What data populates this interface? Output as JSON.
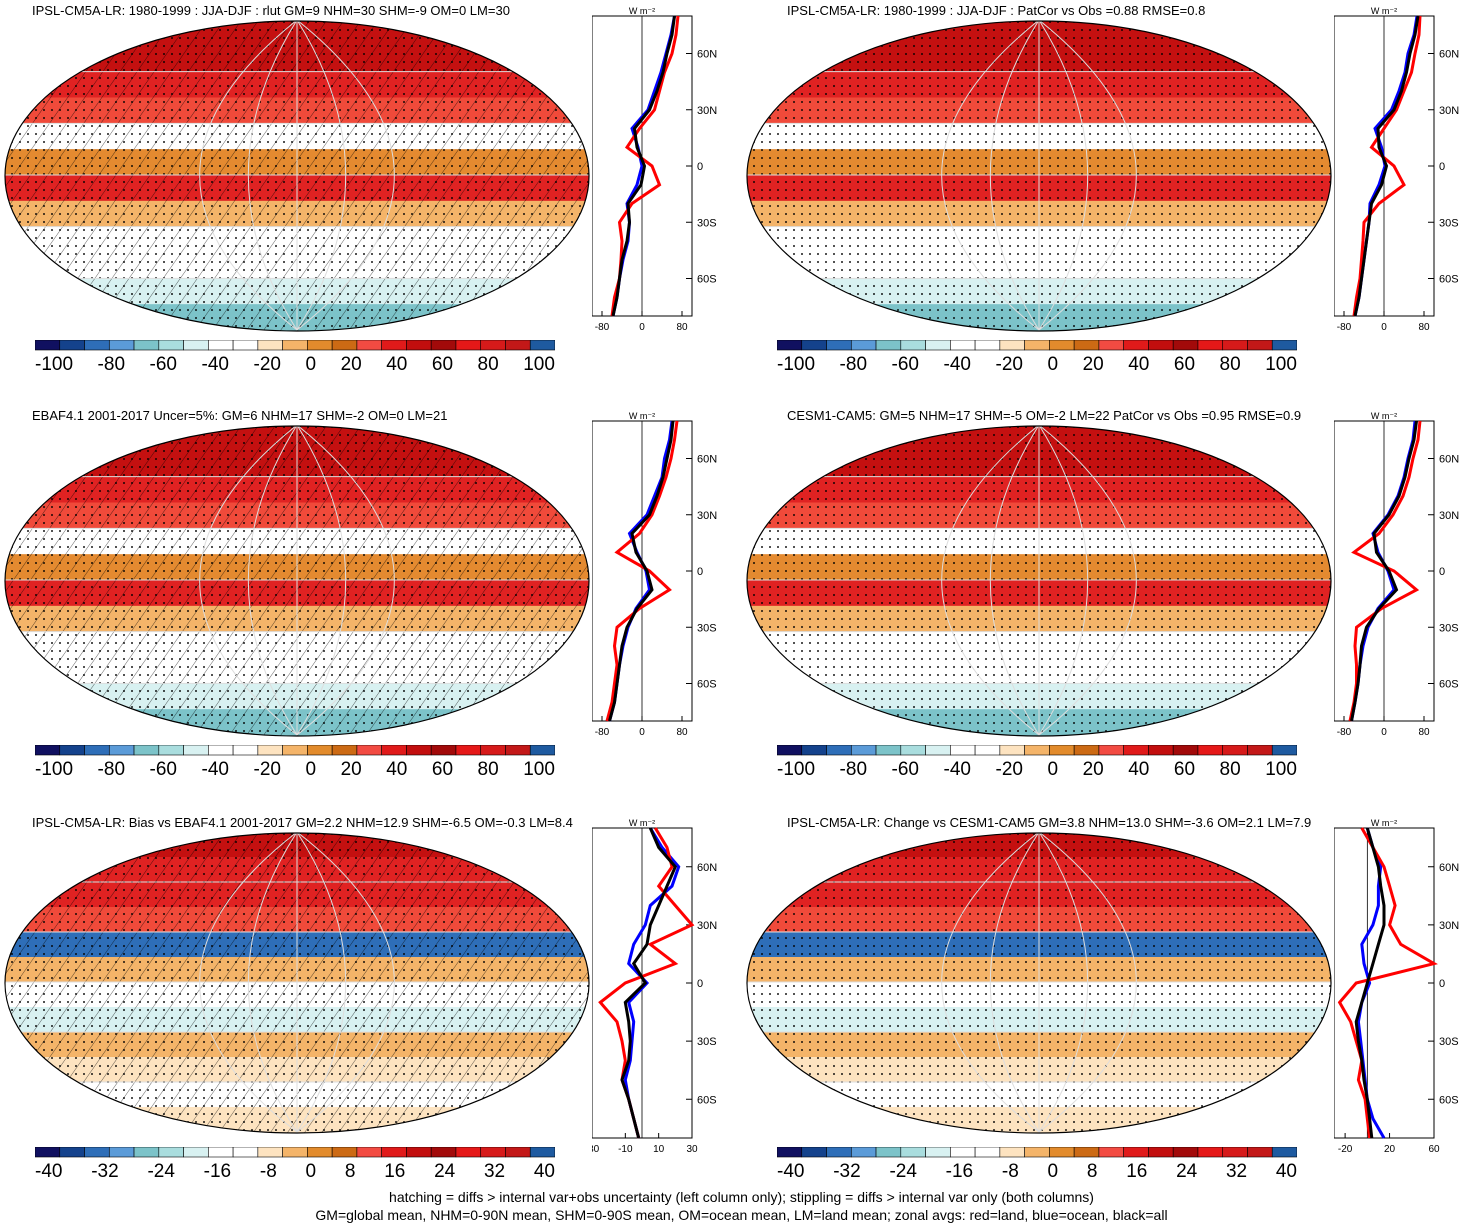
{
  "footer": {
    "line1": "hatching = diffs > internal var+obs uncertainty (left column only); stippling = diffs > internal var only (both columns)",
    "line2": "GM=global mean, NHM=0-90N mean, SHM=0-90S mean, OM=ocean mean, LM=land mean; zonal avgs: red=land, blue=ocean, black=all"
  },
  "colors": {
    "land": "#ff0000",
    "ocean": "#0000ff",
    "all": "#000000",
    "palette": [
      "#101060",
      "#14428c",
      "#2e6eb8",
      "#5b9bd8",
      "#7cc3c9",
      "#a9ddde",
      "#d8f1f1",
      "#ffffff",
      "#ffffff",
      "#fde3c0",
      "#f4b469",
      "#e28b2c",
      "#cc6a14",
      "#f24b42",
      "#e01a1a",
      "#c20e0e",
      "#a20a0a",
      "#e51818",
      "#d61a1a",
      "#c31818",
      "#1e5aa0"
    ]
  },
  "panels": [
    {
      "title": "IPSL-CM5A-LR: 1980-1999 : JJA-DJF : rlut GM=9 NHM=30 SHM=-9 OM=0 LM=30",
      "cb_labels": [
        "-100",
        "-80",
        "-60",
        "-40",
        "-20",
        "0",
        "20",
        "40",
        "60",
        "80",
        "100"
      ],
      "chart_data": {
        "type": "line",
        "units": "W m-2",
        "xlim": [
          -100,
          100
        ],
        "xticks": [
          "-80",
          "0",
          "80"
        ],
        "yticks": [
          "60N",
          "30N",
          "0",
          "30S",
          "60S"
        ],
        "lat": [
          80,
          70,
          60,
          50,
          40,
          30,
          20,
          10,
          0,
          -10,
          -20,
          -30,
          -40,
          -50,
          -60,
          -70,
          -80
        ],
        "series": [
          {
            "key": "all",
            "values": [
              65,
              60,
              50,
              42,
              30,
              15,
              -15,
              -10,
              5,
              -2,
              -28,
              -25,
              -30,
              -40,
              -45,
              -50,
              -58
            ]
          },
          {
            "key": "land",
            "values": [
              72,
              68,
              60,
              45,
              35,
              25,
              -5,
              -30,
              20,
              35,
              -20,
              -45,
              -40,
              -42,
              -45,
              -55,
              -60
            ]
          },
          {
            "key": "ocean",
            "values": [
              65,
              58,
              48,
              38,
              25,
              12,
              -20,
              -8,
              0,
              -10,
              -30,
              -25,
              -28,
              -38,
              -45,
              -50,
              -58
            ]
          }
        ]
      }
    },
    {
      "title": "IPSL-CM5A-LR: 1980-1999 : JJA-DJF : PatCor vs Obs =0.88 RMSE=0.8",
      "cb_labels": [
        "-100",
        "-80",
        "-60",
        "-40",
        "-20",
        "0",
        "20",
        "40",
        "60",
        "80",
        "100"
      ],
      "chart_data": {
        "type": "line",
        "units": "W m-2",
        "xlim": [
          -100,
          100
        ],
        "xticks": [
          "-80",
          "0",
          "80"
        ],
        "yticks": [
          "60N",
          "30N",
          "0",
          "30S",
          "60S"
        ],
        "lat": [
          80,
          70,
          60,
          50,
          40,
          30,
          20,
          10,
          0,
          -10,
          -20,
          -30,
          -40,
          -50,
          -60,
          -70,
          -80
        ],
        "series": [
          {
            "key": "all",
            "values": [
              68,
              62,
              52,
              45,
              35,
              20,
              -12,
              -10,
              5,
              -5,
              -25,
              -30,
              -35,
              -40,
              -45,
              -50,
              -58
            ]
          },
          {
            "key": "land",
            "values": [
              72,
              70,
              62,
              55,
              40,
              25,
              0,
              -25,
              20,
              40,
              -10,
              -40,
              -42,
              -45,
              -48,
              -55,
              -60
            ]
          },
          {
            "key": "ocean",
            "values": [
              66,
              60,
              48,
              42,
              30,
              15,
              -18,
              -5,
              2,
              -10,
              -28,
              -30,
              -35,
              -40,
              -45,
              -50,
              -58
            ]
          }
        ]
      }
    },
    {
      "title": "EBAF4.1 2001-2017 Uncer=5%: GM=6 NHM=17 SHM=-2 OM=0 LM=21",
      "cb_labels": [
        "-100",
        "-80",
        "-60",
        "-40",
        "-20",
        "0",
        "20",
        "40",
        "60",
        "80",
        "100"
      ],
      "chart_data": {
        "type": "line",
        "units": "W m-2",
        "xlim": [
          -100,
          100
        ],
        "xticks": [
          "-80",
          "0",
          "80"
        ],
        "yticks": [
          "60N",
          "30N",
          "0",
          "30S",
          "60S"
        ],
        "lat": [
          80,
          70,
          60,
          50,
          40,
          30,
          20,
          10,
          0,
          -10,
          -20,
          -30,
          -40,
          -50,
          -60,
          -70,
          -80
        ],
        "series": [
          {
            "key": "all",
            "values": [
              62,
              58,
              50,
              42,
              30,
              15,
              -20,
              -12,
              10,
              20,
              -10,
              -30,
              -40,
              -45,
              -50,
              -55,
              -65
            ]
          },
          {
            "key": "land",
            "values": [
              70,
              65,
              58,
              48,
              35,
              20,
              -5,
              -50,
              15,
              55,
              -5,
              -50,
              -55,
              -50,
              -55,
              -60,
              -70
            ]
          },
          {
            "key": "ocean",
            "values": [
              60,
              55,
              45,
              40,
              25,
              10,
              -25,
              -10,
              8,
              15,
              -12,
              -28,
              -38,
              -45,
              -50,
              -55,
              -65
            ]
          }
        ]
      }
    },
    {
      "title": "CESM1-CAM5: GM=5 NHM=17 SHM=-5 OM=-2 LM=22 PatCor vs Obs =0.95 RMSE=0.9",
      "cb_labels": [
        "-100",
        "-80",
        "-60",
        "-40",
        "-20",
        "0",
        "20",
        "40",
        "60",
        "80",
        "100"
      ],
      "chart_data": {
        "type": "line",
        "units": "W m-2",
        "xlim": [
          -100,
          100
        ],
        "xticks": [
          "-80",
          "0",
          "80"
        ],
        "yticks": [
          "60N",
          "30N",
          "0",
          "30S",
          "60S"
        ],
        "lat": [
          80,
          70,
          60,
          50,
          40,
          30,
          20,
          10,
          0,
          -10,
          -20,
          -30,
          -40,
          -50,
          -60,
          -70,
          -80
        ],
        "series": [
          {
            "key": "all",
            "values": [
              65,
              60,
              50,
              42,
              30,
              10,
              -20,
              -15,
              10,
              25,
              -10,
              -35,
              -45,
              -48,
              -52,
              -58,
              -65
            ]
          },
          {
            "key": "land",
            "values": [
              72,
              68,
              58,
              50,
              38,
              18,
              -10,
              -60,
              20,
              65,
              -5,
              -55,
              -58,
              -55,
              -55,
              -60,
              -68
            ]
          },
          {
            "key": "ocean",
            "values": [
              62,
              58,
              48,
              40,
              28,
              8,
              -22,
              -12,
              8,
              20,
              -12,
              -32,
              -42,
              -48,
              -52,
              -58,
              -65
            ]
          }
        ]
      }
    },
    {
      "title": "IPSL-CM5A-LR: Bias vs EBAF4.1 2001-2017 GM=2.2 NHM=12.9 SHM=-6.5 OM=-0.3 LM=8.4",
      "cb_labels": [
        "-40",
        "-32",
        "-24",
        "-16",
        "-8",
        "0",
        "8",
        "16",
        "24",
        "32",
        "40"
      ],
      "chart_data": {
        "type": "line",
        "units": "W m-2",
        "xlim": [
          -30,
          30
        ],
        "xticks": [
          "-30",
          "-10",
          "10",
          "30"
        ],
        "yticks": [
          "60N",
          "30N",
          "0",
          "30S",
          "60S"
        ],
        "lat": [
          80,
          70,
          60,
          50,
          40,
          30,
          20,
          10,
          0,
          -10,
          -20,
          -30,
          -40,
          -50,
          -60,
          -70,
          -80
        ],
        "series": [
          {
            "key": "all",
            "values": [
              5,
              10,
              20,
              15,
              10,
              5,
              3,
              -5,
              2,
              -10,
              -8,
              -7,
              -8,
              -12,
              -8,
              -5,
              -2
            ]
          },
          {
            "key": "land",
            "values": [
              8,
              15,
              18,
              10,
              20,
              30,
              5,
              20,
              -10,
              -25,
              -15,
              -12,
              -10,
              -12,
              -8,
              -5,
              -2
            ]
          },
          {
            "key": "ocean",
            "values": [
              5,
              12,
              22,
              18,
              5,
              2,
              -5,
              -8,
              3,
              -8,
              -5,
              -6,
              -7,
              -10,
              -8,
              -5,
              -2
            ]
          }
        ]
      }
    },
    {
      "title": "IPSL-CM5A-LR: Change vs CESM1-CAM5 GM=3.8 NHM=13.0 SHM=-3.6 OM=2.1 LM=7.9",
      "cb_labels": [
        "-40",
        "-32",
        "-24",
        "-16",
        "-8",
        "0",
        "8",
        "16",
        "24",
        "32",
        "40"
      ],
      "chart_data": {
        "type": "line",
        "units": "W m-2",
        "xlim": [
          -30,
          60
        ],
        "xticks": [
          "-20",
          "20",
          "60"
        ],
        "yticks": [
          "60N",
          "30N",
          "0",
          "30S",
          "60S"
        ],
        "lat": [
          80,
          70,
          60,
          50,
          40,
          30,
          20,
          10,
          0,
          -10,
          -20,
          -30,
          -40,
          -50,
          -60,
          -70,
          -80
        ],
        "series": [
          {
            "key": "all",
            "values": [
              0,
              5,
              10,
              12,
              15,
              15,
              10,
              5,
              0,
              -5,
              -10,
              -8,
              -5,
              -3,
              0,
              2,
              4
            ]
          },
          {
            "key": "land",
            "values": [
              -5,
              5,
              15,
              20,
              25,
              20,
              30,
              60,
              -10,
              -25,
              -15,
              -10,
              -5,
              -8,
              -2,
              0,
              2
            ]
          },
          {
            "key": "ocean",
            "values": [
              0,
              5,
              12,
              10,
              10,
              5,
              -5,
              -3,
              2,
              -5,
              -8,
              -6,
              -4,
              -2,
              0,
              5,
              15
            ]
          }
        ]
      }
    }
  ]
}
